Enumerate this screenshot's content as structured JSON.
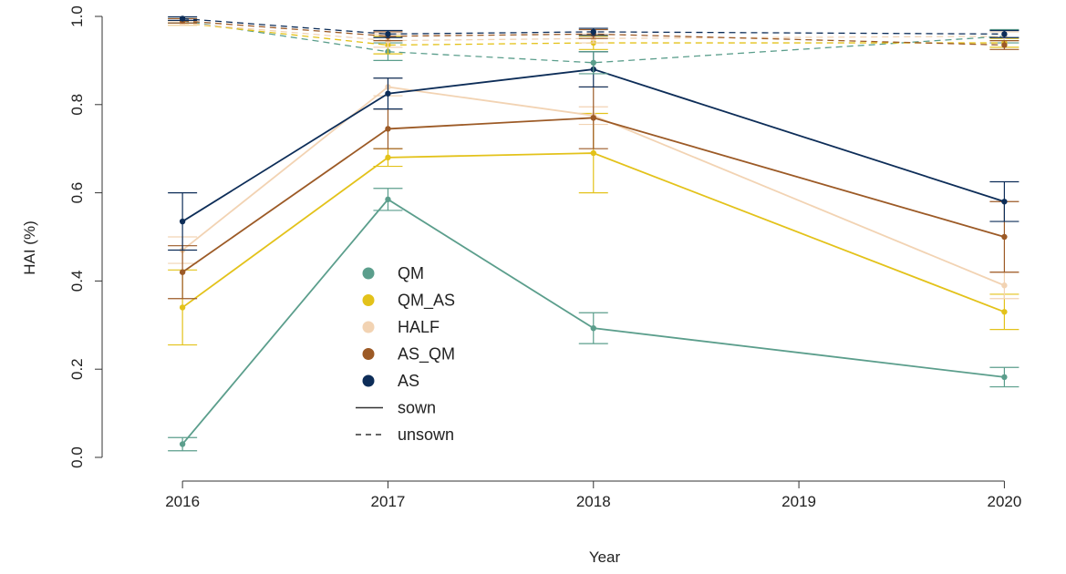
{
  "chart_data": {
    "type": "line",
    "title": "",
    "xlabel": "Year",
    "ylabel": "HAI (%)",
    "xlim": [
      2015.6,
      2020.3
    ],
    "ylim": [
      0.0,
      1.0
    ],
    "xticks": [
      2016,
      2017,
      2018,
      2019,
      2020
    ],
    "yticks": [
      0.0,
      0.2,
      0.4,
      0.6,
      0.8,
      1.0
    ],
    "x": [
      2016,
      2017,
      2018,
      2020
    ],
    "grid": false,
    "legend_position": "center-left",
    "series": [
      {
        "name": "QM",
        "treatment": "sown",
        "color": "#5b9e8c",
        "values": [
          0.03,
          0.585,
          0.293,
          0.182
        ],
        "errors": [
          0.015,
          0.025,
          0.035,
          0.022
        ]
      },
      {
        "name": "QM_AS",
        "treatment": "sown",
        "color": "#e3c21a",
        "values": [
          0.34,
          0.68,
          0.69,
          0.33
        ],
        "errors": [
          0.085,
          0.02,
          0.09,
          0.04
        ]
      },
      {
        "name": "HALF",
        "treatment": "sown",
        "color": "#f2d3b3",
        "values": [
          0.47,
          0.84,
          0.775,
          0.39
        ],
        "errors": [
          0.03,
          0.02,
          0.02,
          0.03
        ]
      },
      {
        "name": "AS_QM",
        "treatment": "sown",
        "color": "#9c5a26",
        "values": [
          0.42,
          0.745,
          0.77,
          0.5
        ],
        "errors": [
          0.06,
          0.045,
          0.07,
          0.08
        ]
      },
      {
        "name": "AS",
        "treatment": "sown",
        "color": "#0d2d58",
        "values": [
          0.535,
          0.825,
          0.88,
          0.58
        ],
        "errors": [
          0.065,
          0.035,
          0.04,
          0.045
        ]
      },
      {
        "name": "QM",
        "treatment": "unsown",
        "color": "#5b9e8c",
        "values": [
          0.99,
          0.92,
          0.895,
          0.955
        ],
        "errors": [
          0.005,
          0.02,
          0.025,
          0.015
        ]
      },
      {
        "name": "QM_AS",
        "treatment": "unsown",
        "color": "#e3c21a",
        "values": [
          0.985,
          0.935,
          0.94,
          0.94
        ],
        "errors": [
          0.005,
          0.02,
          0.015,
          0.01
        ]
      },
      {
        "name": "HALF",
        "treatment": "unsown",
        "color": "#f2d3b3",
        "values": [
          0.985,
          0.945,
          0.95,
          0.955
        ],
        "errors": [
          0.005,
          0.015,
          0.01,
          0.01
        ]
      },
      {
        "name": "AS_QM",
        "treatment": "unsown",
        "color": "#9c5a26",
        "values": [
          0.99,
          0.955,
          0.96,
          0.935
        ],
        "errors": [
          0.005,
          0.01,
          0.01,
          0.01
        ]
      },
      {
        "name": "AS",
        "treatment": "unsown",
        "color": "#0d2d58",
        "values": [
          0.995,
          0.96,
          0.965,
          0.96
        ],
        "errors": [
          0.004,
          0.008,
          0.008,
          0.008
        ]
      }
    ],
    "legend": {
      "groups": [
        {
          "label": "QM",
          "color": "#5b9e8c"
        },
        {
          "label": "QM_AS",
          "color": "#e3c21a"
        },
        {
          "label": "HALF",
          "color": "#f2d3b3"
        },
        {
          "label": "AS_QM",
          "color": "#9c5a26"
        },
        {
          "label": "AS",
          "color": "#0d2d58"
        }
      ],
      "line_types": [
        {
          "label": "sown",
          "style": "solid"
        },
        {
          "label": "unsown",
          "style": "dashed"
        }
      ]
    }
  }
}
